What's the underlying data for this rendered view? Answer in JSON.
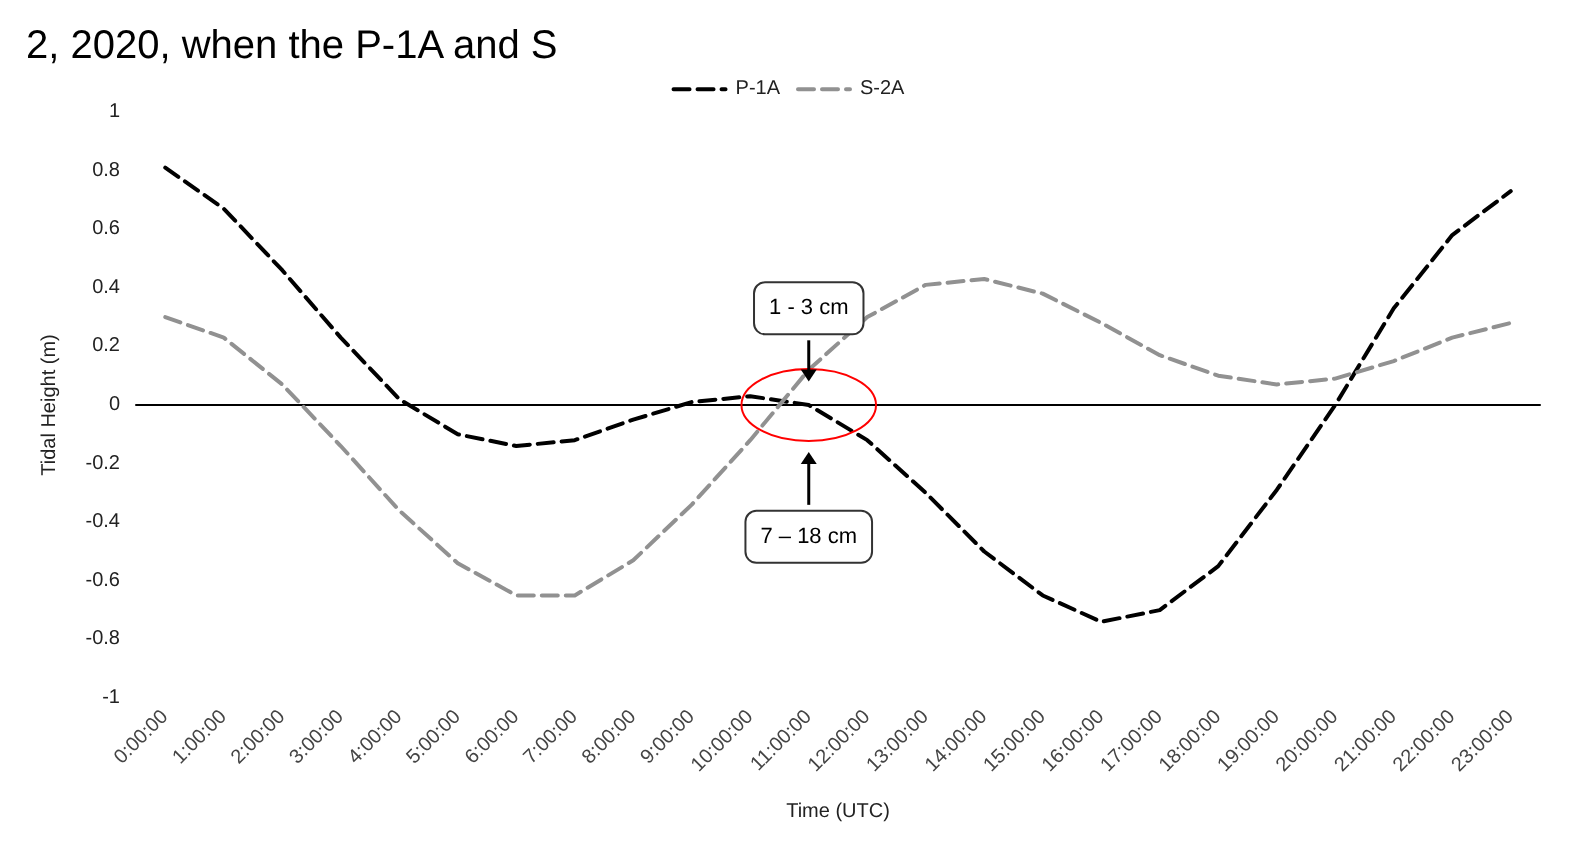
{
  "chart_data": {
    "type": "line",
    "title": "2, 2020, when the P-1A and S",
    "xlabel": "Time (UTC)",
    "ylabel": "Tidal Height (m)",
    "categories": [
      "0:00:00",
      "1:00:00",
      "2:00:00",
      "3:00:00",
      "4:00:00",
      "5:00:00",
      "6:00:00",
      "7:00:00",
      "8:00:00",
      "9:00:00",
      "10:00:00",
      "11:00:00",
      "12:00:00",
      "13:00:00",
      "14:00:00",
      "15:00:00",
      "16:00:00",
      "17:00:00",
      "18:00:00",
      "19:00:00",
      "20:00:00",
      "21:00:00",
      "22:00:00",
      "23:00:00"
    ],
    "series": [
      {
        "name": "P-1A",
        "color": "#000000",
        "values": [
          0.81,
          0.67,
          0.46,
          0.23,
          0.02,
          -0.1,
          -0.14,
          -0.12,
          -0.05,
          0.01,
          0.03,
          0.0,
          -0.12,
          -0.3,
          -0.5,
          -0.65,
          -0.74,
          -0.7,
          -0.55,
          -0.29,
          0.0,
          0.33,
          0.58,
          0.73
        ]
      },
      {
        "name": "S-2A",
        "color": "#919191",
        "values": [
          0.3,
          0.23,
          0.07,
          -0.14,
          -0.36,
          -0.54,
          -0.65,
          -0.65,
          -0.53,
          -0.34,
          -0.12,
          0.12,
          0.3,
          0.41,
          0.43,
          0.38,
          0.28,
          0.17,
          0.1,
          0.07,
          0.09,
          0.15,
          0.23,
          0.28
        ]
      }
    ],
    "ylim": [
      -1,
      1
    ],
    "yticks": [
      -1,
      -0.8,
      -0.6,
      -0.4,
      -0.2,
      0,
      0.2,
      0.4,
      0.6,
      0.8,
      1
    ],
    "annotations": [
      "1 - 3 cm",
      "7 – 18 cm"
    ],
    "legend": "top",
    "marker": "none",
    "line_style": "dashed"
  }
}
